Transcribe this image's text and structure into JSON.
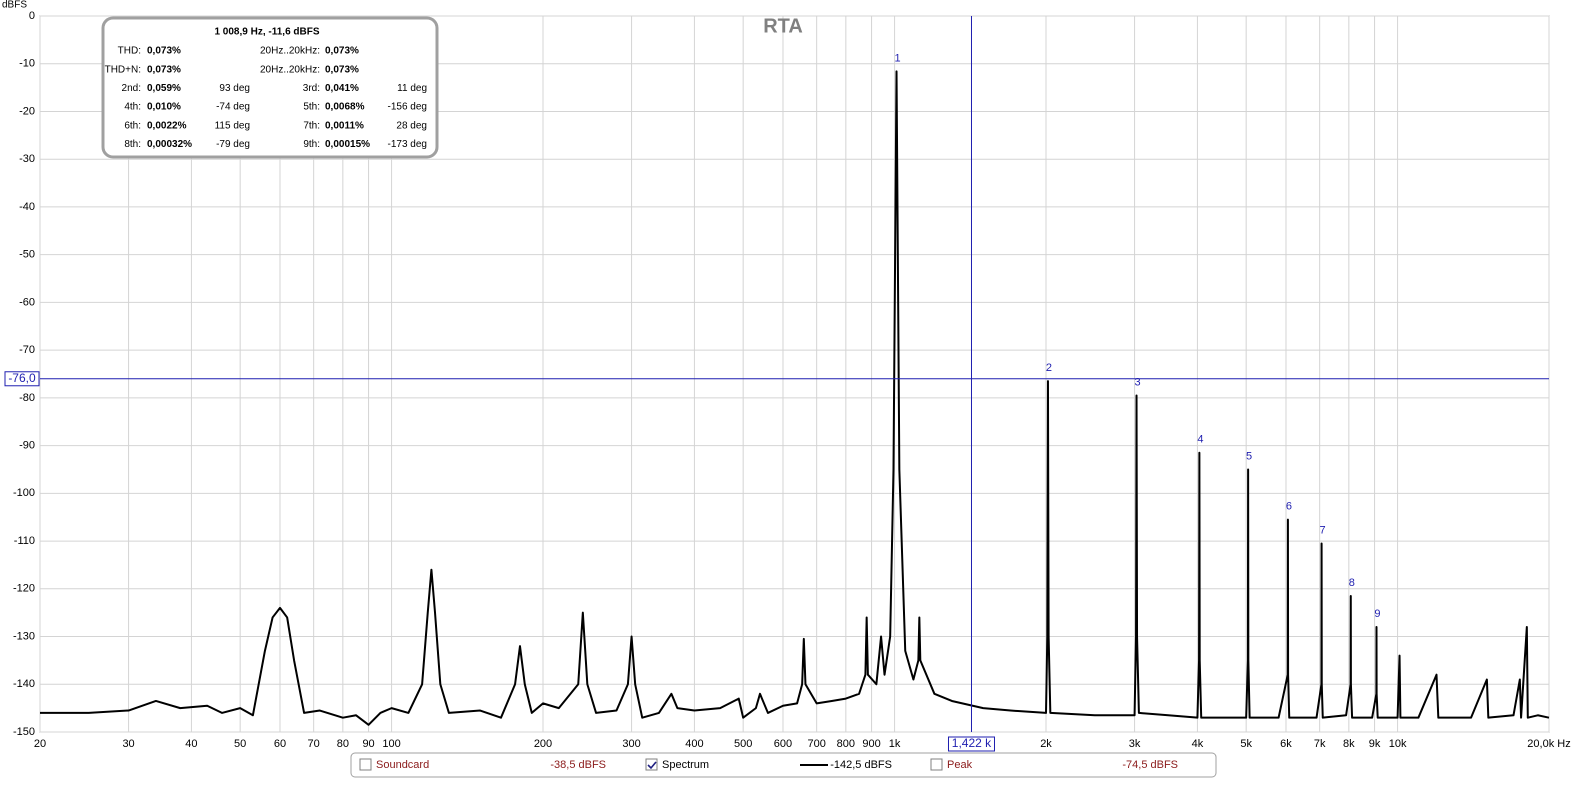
{
  "chart_data": {
    "type": "line",
    "title": "RTA",
    "y_label": "dBFS",
    "xscale": "log",
    "grid": true,
    "xlim": [
      20,
      20000
    ],
    "ylim": [
      -150,
      0
    ],
    "xticks": [
      20,
      30,
      40,
      50,
      60,
      70,
      80,
      90,
      100,
      200,
      300,
      400,
      500,
      600,
      700,
      800,
      900,
      {
        "value": 1000,
        "label": "1k"
      },
      {
        "value": 2000,
        "label": "2k"
      },
      {
        "value": 3000,
        "label": "3k"
      },
      {
        "value": 4000,
        "label": "4k"
      },
      {
        "value": 5000,
        "label": "5k"
      },
      {
        "value": 6000,
        "label": "6k"
      },
      {
        "value": 7000,
        "label": "7k"
      },
      {
        "value": 8000,
        "label": "8k"
      },
      {
        "value": 9000,
        "label": "9k"
      },
      {
        "value": 10000,
        "label": "10k"
      },
      {
        "value": 20000,
        "label": "20,0k Hz"
      }
    ],
    "yticks": [
      0,
      -10,
      -20,
      -30,
      -40,
      -50,
      -60,
      -70,
      -80,
      -90,
      -100,
      -110,
      -120,
      -130,
      -140,
      -150
    ],
    "x": [
      20,
      25,
      30,
      34,
      38,
      43,
      46,
      50,
      53,
      56,
      58,
      60,
      62,
      64,
      67,
      72,
      80,
      85,
      90,
      95,
      100,
      108,
      115,
      118,
      120,
      122,
      125,
      130,
      150,
      165,
      176,
      180,
      184,
      190,
      200,
      215,
      235,
      240,
      245,
      255,
      280,
      295,
      300,
      305,
      315,
      340,
      360,
      370,
      400,
      450,
      490,
      500,
      530,
      540,
      560,
      600,
      640,
      655,
      660,
      665,
      700,
      750,
      800,
      850,
      875,
      880,
      885,
      920,
      940,
      955,
      980,
      995,
      1008.9,
      1022,
      1050,
      1090,
      1115,
      1120,
      1125,
      1200,
      1300,
      1500,
      1700,
      2000,
      2012,
      2018,
      2024,
      2040,
      2500,
      3000,
      3020,
      3027,
      3034,
      3060,
      3500,
      4000,
      4030,
      4036,
      4042,
      4070,
      4500,
      5000,
      5040,
      5045,
      5050,
      5080,
      5800,
      6048,
      6053,
      6058,
      6090,
      6900,
      7057,
      7062,
      7067,
      7100,
      7900,
      8066,
      8071,
      8076,
      8120,
      8900,
      9075,
      9080,
      9085,
      9130,
      10000,
      10090,
      10130,
      11000,
      11950,
      12050,
      14000,
      15050,
      15150,
      17000,
      17500,
      17600,
      18070,
      18150,
      19000,
      20000
    ],
    "series": [
      {
        "name": "Spectrum",
        "color": "#000000",
        "values": [
          -146,
          -146,
          -145.5,
          -143.5,
          -145,
          -144.5,
          -146,
          -145,
          -146.5,
          -133,
          -126,
          -124,
          -126,
          -135,
          -146,
          -145.5,
          -147,
          -146.5,
          -148.5,
          -146,
          -145,
          -146,
          -140,
          -125,
          -116,
          -125,
          -140,
          -146,
          -145.5,
          -147,
          -140,
          -132,
          -140,
          -146,
          -144,
          -145,
          -140,
          -125,
          -140,
          -146,
          -145.5,
          -140,
          -130,
          -140,
          -147,
          -146,
          -142,
          -145,
          -145.5,
          -145,
          -143,
          -147,
          -145,
          -142,
          -146,
          -144.5,
          -144,
          -140,
          -130.5,
          -140,
          -144,
          -143.5,
          -143,
          -142,
          -138,
          -126,
          -138,
          -140,
          -130,
          -138,
          -130,
          -95,
          -11.6,
          -95,
          -133,
          -139,
          -135,
          -126,
          -135,
          -142,
          -143.5,
          -145,
          -145.5,
          -146,
          -130,
          -76.5,
          -130,
          -146,
          -146.5,
          -146.5,
          -130,
          -79.5,
          -130,
          -146,
          -146.5,
          -147,
          -135,
          -91.5,
          -135,
          -147,
          -147,
          -147,
          -135,
          -95,
          -135,
          -147,
          -147,
          -138,
          -105.5,
          -138,
          -147,
          -147,
          -140,
          -110.5,
          -140,
          -147,
          -146.5,
          -140,
          -121.5,
          -140,
          -147,
          -147,
          -142,
          -128,
          -142,
          -147,
          -147,
          -134,
          -147,
          -147,
          -138,
          -147,
          -147,
          -139,
          -147,
          -146.5,
          -139,
          -147,
          -128,
          -147,
          -146.5,
          -147
        ]
      }
    ],
    "peaks": [
      {
        "label": "1",
        "x": 1008.9,
        "y": -11.6
      },
      {
        "label": "2",
        "x": 2018,
        "y": -76.5
      },
      {
        "label": "3",
        "x": 3027,
        "y": -79.5
      },
      {
        "label": "4",
        "x": 4036,
        "y": -91.5
      },
      {
        "label": "5",
        "x": 5045,
        "y": -95
      },
      {
        "label": "6",
        "x": 6053,
        "y": -105.5
      },
      {
        "label": "7",
        "x": 7062,
        "y": -110.5
      },
      {
        "label": "8",
        "x": 8071,
        "y": -121.5
      },
      {
        "label": "9",
        "x": 9080,
        "y": -128
      }
    ],
    "cursor": {
      "x": 1422,
      "x_label": "1,422 k",
      "y": -76.0,
      "y_label": "-76,0",
      "color": "#1f1fb0"
    },
    "info": {
      "header": "1 008,9 Hz, -11,6 dBFS",
      "rows": [
        [
          "THD:",
          "0,073%",
          "20Hz..20kHz:",
          "0,073%"
        ],
        [
          "THD+N:",
          "0,073%",
          "20Hz..20kHz:",
          "0,073%"
        ],
        [
          "2nd:",
          "0,059%",
          "93 deg",
          "3rd:",
          "0,041%",
          "11 deg"
        ],
        [
          "4th:",
          "0,010%",
          "-74 deg",
          "5th:",
          "0,0068%",
          "-156 deg"
        ],
        [
          "6th:",
          "0,0022%",
          "115 deg",
          "7th:",
          "0,0011%",
          "28 deg"
        ],
        [
          "8th:",
          "0,00032%",
          "-79 deg",
          "9th:",
          "0,00015%",
          "-173 deg"
        ]
      ]
    },
    "legend": [
      {
        "name": "Soundcard",
        "value": "-38,5 dBFS",
        "checked": false
      },
      {
        "name": "Spectrum",
        "value": "-142,5 dBFS",
        "checked": true
      },
      {
        "name": "Peak",
        "value": "-74,5 dBFS",
        "checked": false
      }
    ]
  }
}
